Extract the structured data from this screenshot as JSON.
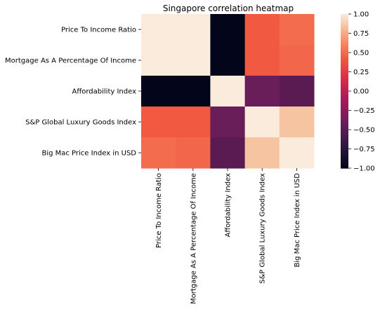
{
  "chart_data": {
    "type": "heatmap",
    "title": "Singapore correlation heatmap",
    "xlabel": "",
    "ylabel": "",
    "rows": [
      "Price To Income Ratio",
      "Mortgage As A Percentage Of Income",
      "Affordability Index",
      "S&P Global Luxury Goods Index",
      "Big Mac Price Index in USD"
    ],
    "columns": [
      "Price To Income Ratio",
      "Mortgage As A Percentage Of Income",
      "Affordability Index",
      "S&P Global Luxury Goods Index",
      "Big Mac Price Index in USD"
    ],
    "values": [
      [
        1.0,
        1.0,
        -1.0,
        0.42,
        0.5
      ],
      [
        1.0,
        1.0,
        -1.0,
        0.42,
        0.48
      ],
      [
        -1.0,
        -1.0,
        1.0,
        -0.43,
        -0.5
      ],
      [
        0.42,
        0.42,
        -0.43,
        1.0,
        0.84
      ],
      [
        0.5,
        0.48,
        -0.5,
        0.84,
        1.0
      ]
    ],
    "colorbar": {
      "range": [
        -1.0,
        1.0
      ],
      "ticks": [
        "1.00",
        "0.75",
        "0.50",
        "0.25",
        "0.00",
        "−0.25",
        "−0.50",
        "−0.75",
        "−1.00"
      ],
      "colormap": "rocket"
    },
    "grid": false,
    "legend": "colorbar-right"
  }
}
